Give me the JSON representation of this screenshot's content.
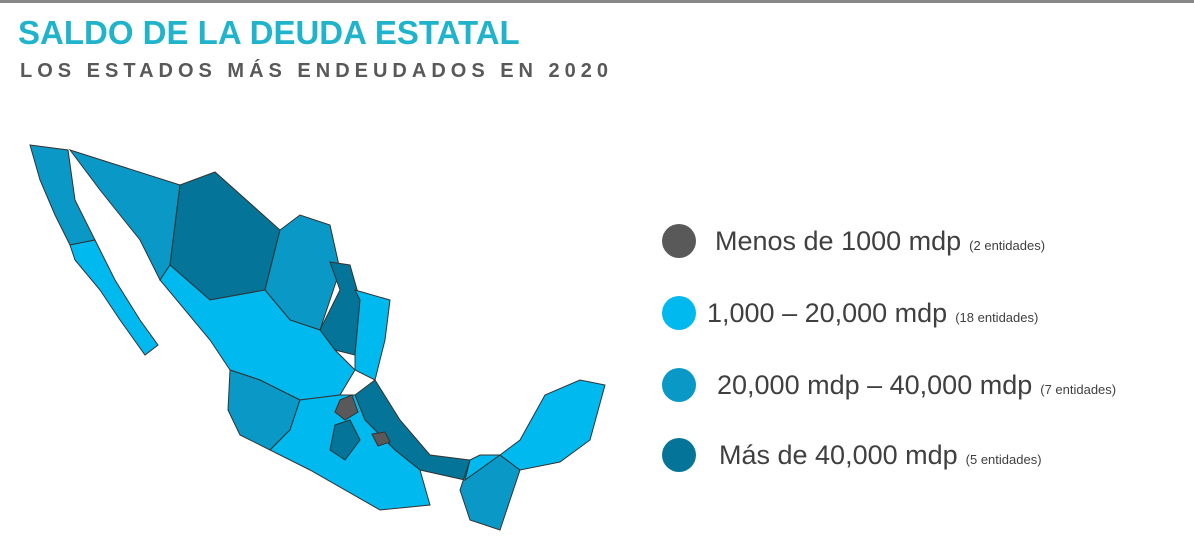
{
  "header": {
    "title": "SALDO DE LA DEUDA ESTATAL",
    "subtitle": "LOS ESTADOS MÁS ENDEUDADOS EN 2020"
  },
  "legend": {
    "items": [
      {
        "label": "Menos de 1000 mdp",
        "note": "(2 entidades)",
        "color": "#595959"
      },
      {
        "label": "1,000 – 20,000 mdp",
        "note": "(18 entidades)",
        "color": "#00b9ef"
      },
      {
        "label": "20,000 mdp – 40,000 mdp",
        "note": "(7 entidades)",
        "color": "#0a98c6"
      },
      {
        "label": "Más de 40,000 mdp",
        "note": "(5 entidades)",
        "color": "#047598"
      }
    ]
  }
}
